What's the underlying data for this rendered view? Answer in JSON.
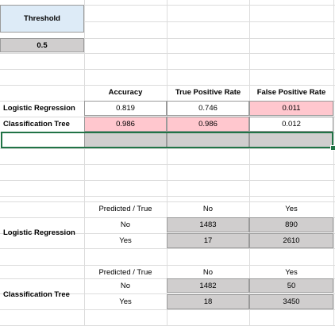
{
  "threshold": {
    "label": "Threshold",
    "value": "0.5"
  },
  "metrics": {
    "headers": [
      "Accuracy",
      "True Positive Rate",
      "False Positive Rate"
    ],
    "rows": [
      {
        "model": "Logistic Regression",
        "values": [
          "0.819",
          "0.746",
          "0.011"
        ]
      },
      {
        "model": "Classification Tree",
        "values": [
          "0.986",
          "0.986",
          "0.012"
        ]
      }
    ],
    "highlight_color": "#ffc7ce"
  },
  "confusion": [
    {
      "model": "Logistic Regression",
      "header": "Predicted / True",
      "columns": [
        "No",
        "Yes"
      ],
      "rows": [
        {
          "label": "No",
          "values": [
            "1483",
            "890"
          ]
        },
        {
          "label": "Yes",
          "values": [
            "17",
            "2610"
          ]
        }
      ]
    },
    {
      "model": "Classification Tree",
      "header": "Predicted / True",
      "columns": [
        "No",
        "Yes"
      ],
      "rows": [
        {
          "label": "No",
          "values": [
            "1482",
            "50"
          ]
        },
        {
          "label": "Yes",
          "values": [
            "18",
            "3450"
          ]
        }
      ]
    }
  ],
  "colors": {
    "selection": "#217346",
    "header_fill": "#ddebf7",
    "gray_fill": "#d0cece"
  }
}
